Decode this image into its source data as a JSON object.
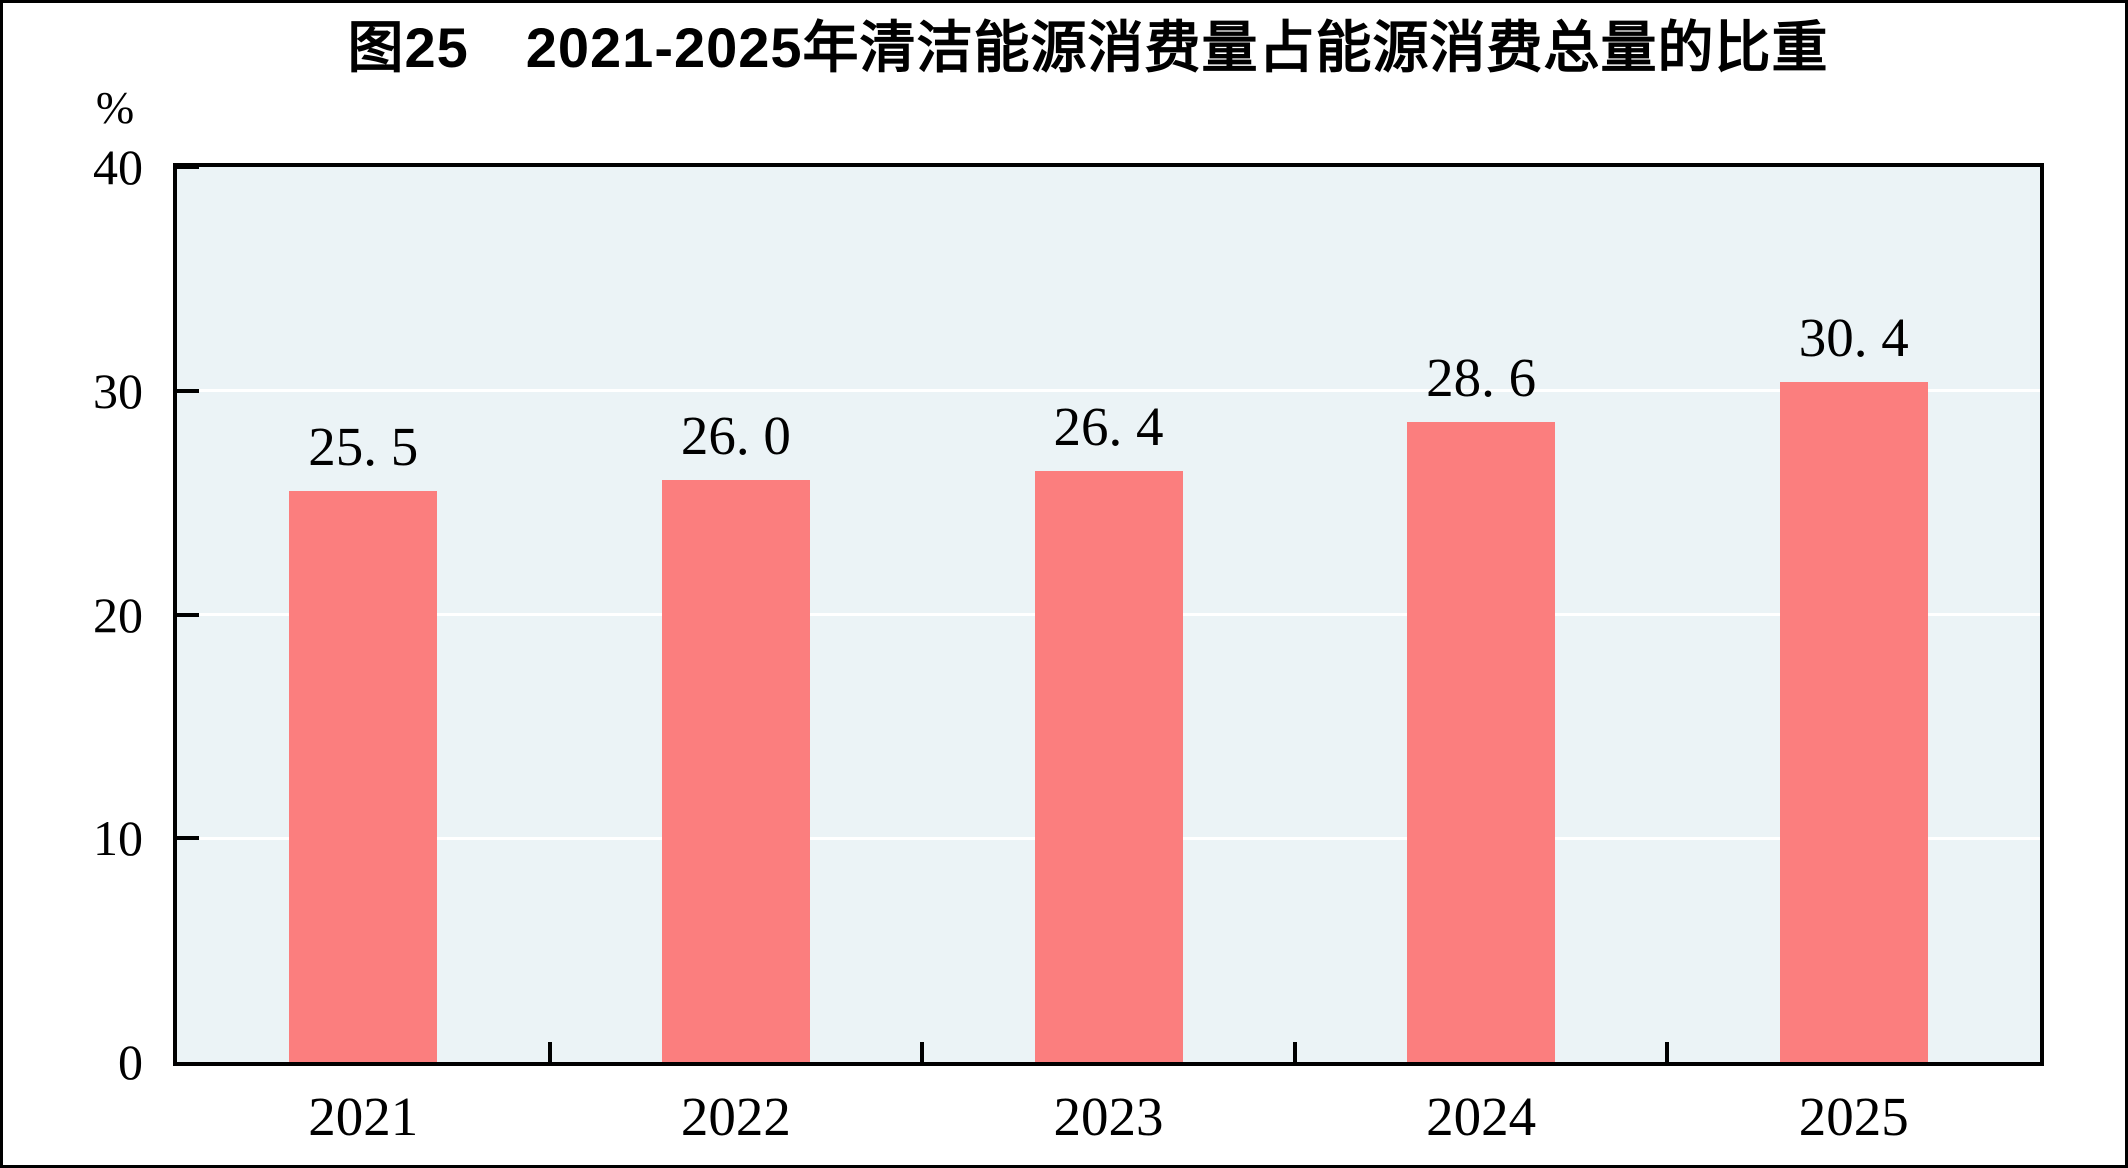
{
  "figure": {
    "title": "图25　2021-2025年清洁能源消费量占能源消费总量的比重",
    "unit_label": "%"
  },
  "chart_data": {
    "type": "bar",
    "title": "图25　2021-2025年清洁能源消费量占能源消费总量的比重",
    "categories": [
      "2021",
      "2022",
      "2023",
      "2024",
      "2025"
    ],
    "values": [
      25.5,
      26.0,
      26.4,
      28.6,
      30.4
    ],
    "value_labels": [
      "25. 5",
      "26. 0",
      "26. 4",
      "28. 6",
      "30. 4"
    ],
    "xlabel": "",
    "ylabel": "%",
    "ylim": [
      0,
      40
    ],
    "yticks": [
      0,
      10,
      20,
      30,
      40
    ],
    "gridlines": [
      10,
      20,
      30
    ],
    "grid": "horizontal-white-on-tinted-panel",
    "legend_position": "none",
    "bar_color": "#FB7E7E",
    "plot_background": "#EBF3F6",
    "axis_color": "#000000",
    "gridline_color": "#FFFFFF"
  }
}
